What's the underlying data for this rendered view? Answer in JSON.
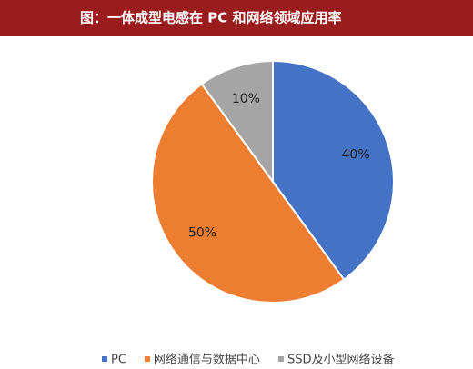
{
  "chart_data": {
    "type": "pie",
    "title": "图：一体成型电感在 PC 和网络领域应用率",
    "categories": [
      "PC",
      "网络通信与数据中心",
      "SSD及小型网络设备"
    ],
    "values": [
      40,
      50,
      10
    ],
    "value_labels": [
      "40%",
      "50%",
      "10%"
    ],
    "colors": [
      "#4472c4",
      "#ed7d31",
      "#a5a5a5"
    ],
    "legend": "bottom"
  }
}
